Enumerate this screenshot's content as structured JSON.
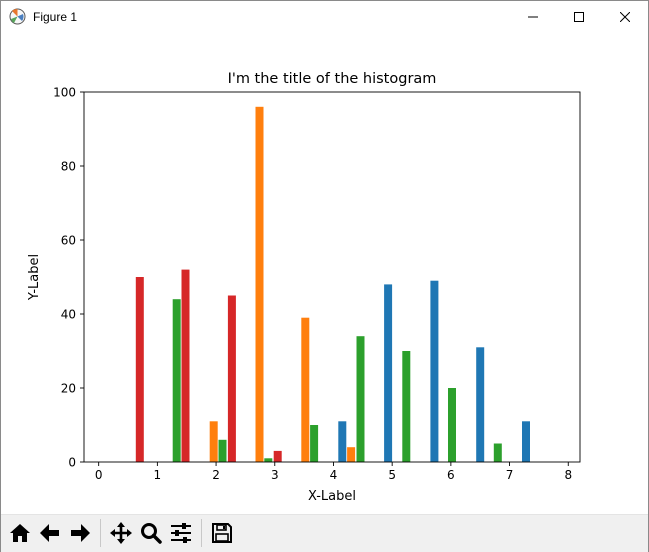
{
  "window": {
    "title": "Figure 1",
    "icons": {
      "app": "matplotlib-logo-icon",
      "minimize": "minimize-icon",
      "maximize": "maximize-icon",
      "close": "close-icon"
    }
  },
  "toolbar": {
    "buttons": [
      {
        "name": "home-button",
        "icon": "home-icon"
      },
      {
        "name": "back-button",
        "icon": "arrow-left-icon"
      },
      {
        "name": "forward-button",
        "icon": "arrow-right-icon"
      },
      {
        "name": "pan-button",
        "icon": "move-arrows-icon"
      },
      {
        "name": "zoom-button",
        "icon": "magnifier-icon"
      },
      {
        "name": "configure-subplots-button",
        "icon": "sliders-icon"
      },
      {
        "name": "save-button",
        "icon": "floppy-disk-icon"
      }
    ]
  },
  "chart_data": {
    "type": "bar",
    "title": "I'm the title of the histogram",
    "xlabel": "X-Label",
    "ylabel": "Y-Label",
    "xlim": [
      -0.25,
      8.2
    ],
    "ylim": [
      0,
      100
    ],
    "xticks": [
      0,
      1,
      2,
      3,
      4,
      5,
      6,
      7,
      8
    ],
    "yticks": [
      0,
      20,
      40,
      60,
      80,
      100
    ],
    "grid": false,
    "colors": [
      "#1f77b4",
      "#ff7f0e",
      "#2ca02c",
      "#d62728"
    ],
    "series": [
      {
        "color": "#1f77b4",
        "x": [
          4.15,
          4.93,
          5.72,
          6.5,
          7.28
        ],
        "values": [
          11,
          48,
          49,
          31,
          11
        ]
      },
      {
        "color": "#ff7f0e",
        "x": [
          1.96,
          2.74,
          3.52,
          4.3
        ],
        "values": [
          11,
          96,
          39,
          4
        ]
      },
      {
        "color": "#2ca02c",
        "x": [
          1.33,
          2.11,
          2.89,
          3.67,
          4.46,
          5.24,
          6.02,
          6.8
        ],
        "values": [
          44,
          6,
          1,
          10,
          34,
          30,
          20,
          5
        ]
      },
      {
        "color": "#d62728",
        "x": [
          0.7,
          1.48,
          2.27,
          3.05
        ],
        "values": [
          50,
          52,
          45,
          3
        ]
      }
    ]
  }
}
